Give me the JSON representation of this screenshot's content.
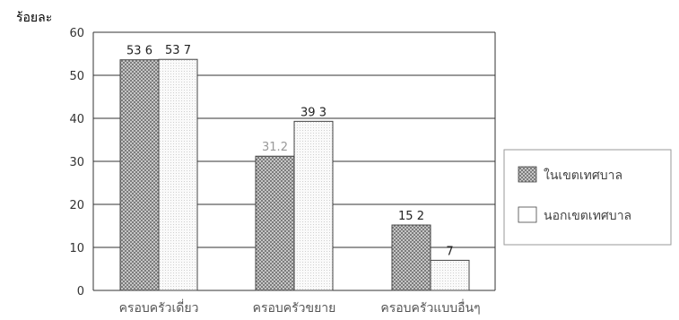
{
  "chart_data": {
    "type": "bar",
    "ylabel": "ร้อยละ",
    "ylim": [
      0,
      60
    ],
    "yticks": [
      0,
      10,
      20,
      30,
      40,
      50,
      60
    ],
    "grid": true,
    "legend_position": "right",
    "categories": [
      "ครอบครัวเดี่ยว",
      "ครอบครัวขยาย",
      "ครอบครัวแบบอื่นๆ"
    ],
    "series": [
      {
        "name": "ในเขตเทศบาล",
        "values": [
          53.6,
          31.2,
          15.2
        ],
        "labels": [
          "53 6",
          "31.2",
          "15 2"
        ],
        "pattern": "crosshatch"
      },
      {
        "name": "นอกเขตเทศบาล",
        "values": [
          53.7,
          39.3,
          7
        ],
        "labels": [
          "53 7",
          "39 3",
          "7"
        ],
        "pattern": "plain"
      }
    ]
  }
}
